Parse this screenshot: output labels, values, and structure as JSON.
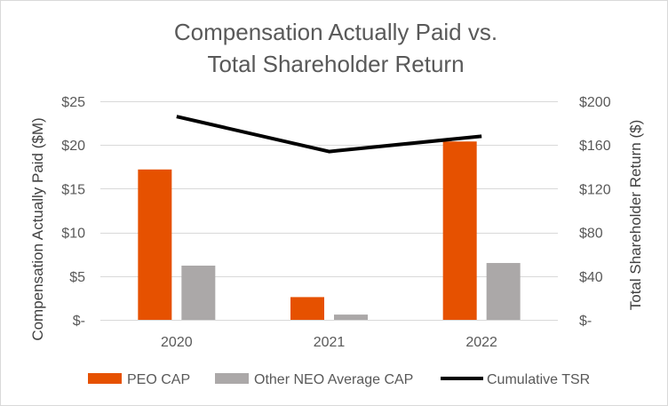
{
  "chart_data": {
    "type": "bar",
    "title_lines": [
      "Compensation Actually Paid vs.",
      "Total Shareholder Return"
    ],
    "categories": [
      "2020",
      "2021",
      "2022"
    ],
    "series": [
      {
        "name": "PEO CAP",
        "kind": "bar",
        "axis": "left",
        "color": "#E65100",
        "values": [
          17.2,
          2.6,
          20.4
        ]
      },
      {
        "name": "Other NEO Average CAP",
        "kind": "bar",
        "axis": "left",
        "color": "#ABA8A8",
        "values": [
          6.2,
          0.6,
          6.5
        ]
      },
      {
        "name": "Cumulative TSR",
        "kind": "line",
        "axis": "right",
        "color": "#000000",
        "values": [
          186,
          154,
          168
        ]
      }
    ],
    "ylabel": "Compensation Actually Paid ($M)",
    "ylabel_right": "Total Shareholder Return ($)",
    "ylim": [
      0,
      25
    ],
    "ylim_right": [
      0,
      200
    ],
    "yticks": [
      {
        "value": 0,
        "label": "$-"
      },
      {
        "value": 5,
        "label": "$5"
      },
      {
        "value": 10,
        "label": "$10"
      },
      {
        "value": 15,
        "label": "$15"
      },
      {
        "value": 20,
        "label": "$20"
      },
      {
        "value": 25,
        "label": "$25"
      }
    ],
    "yticks_right": [
      {
        "value": 0,
        "label": "$-"
      },
      {
        "value": 40,
        "label": "$40"
      },
      {
        "value": 80,
        "label": "$80"
      },
      {
        "value": 120,
        "label": "$120"
      },
      {
        "value": 160,
        "label": "$160"
      },
      {
        "value": 200,
        "label": "$200"
      }
    ],
    "grid": true,
    "legend_position": "bottom"
  }
}
